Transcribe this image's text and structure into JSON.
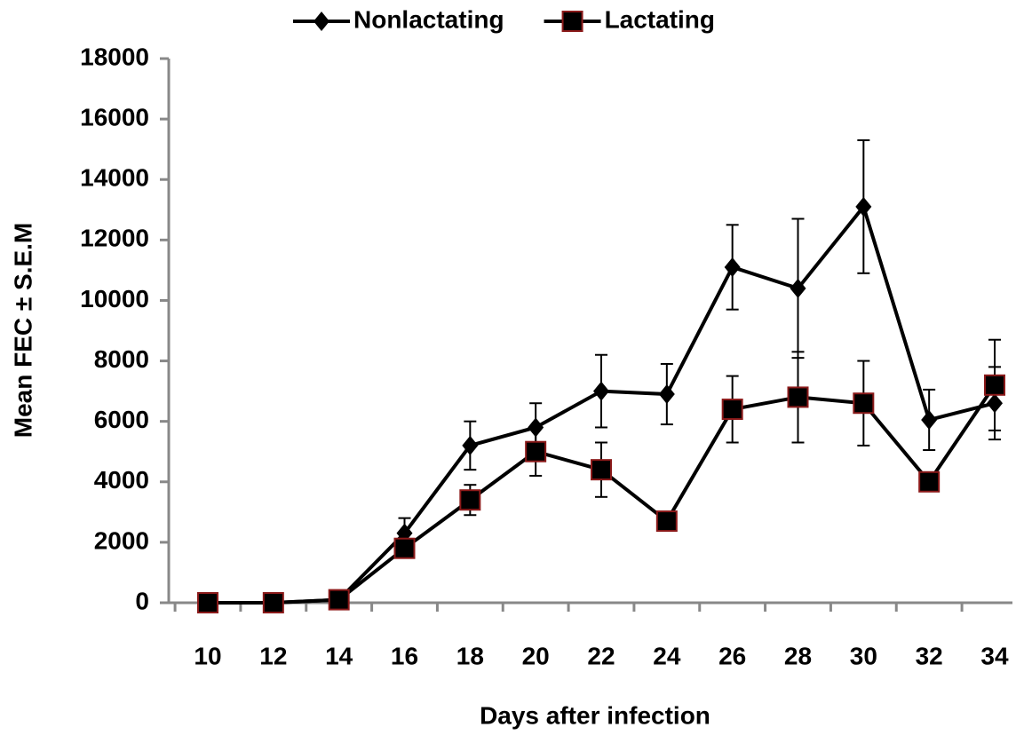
{
  "chart_data": {
    "type": "line",
    "x_label": "Days after infection",
    "y_label": "Mean FEC ± S.E.M",
    "categories": [
      "10",
      "12",
      "14",
      "16",
      "18",
      "20",
      "22",
      "24",
      "26",
      "28",
      "30",
      "32",
      "34"
    ],
    "series": [
      {
        "name": "Nonlactating",
        "color": "#000000",
        "marker": "diamond",
        "values": [
          0,
          0,
          100,
          2300,
          5200,
          5800,
          7000,
          6900,
          11100,
          10400,
          13100,
          6050,
          6600
        ],
        "errors": [
          0,
          0,
          0,
          500,
          800,
          800,
          1200,
          1000,
          1400,
          2300,
          2200,
          1000,
          1200
        ]
      },
      {
        "name": "Lactating",
        "color": "#000000",
        "marker": "square",
        "values": [
          0,
          0,
          100,
          1800,
          3400,
          5000,
          4400,
          2700,
          6400,
          6800,
          6600,
          4000,
          7200
        ],
        "errors": [
          0,
          0,
          0,
          0,
          500,
          800,
          900,
          0,
          1100,
          1500,
          1400,
          300,
          1500
        ]
      }
    ],
    "ylim": [
      0,
      18000
    ],
    "yticks": [
      0,
      2000,
      4000,
      6000,
      8000,
      10000,
      12000,
      14000,
      16000,
      18000
    ],
    "legend": "top"
  }
}
